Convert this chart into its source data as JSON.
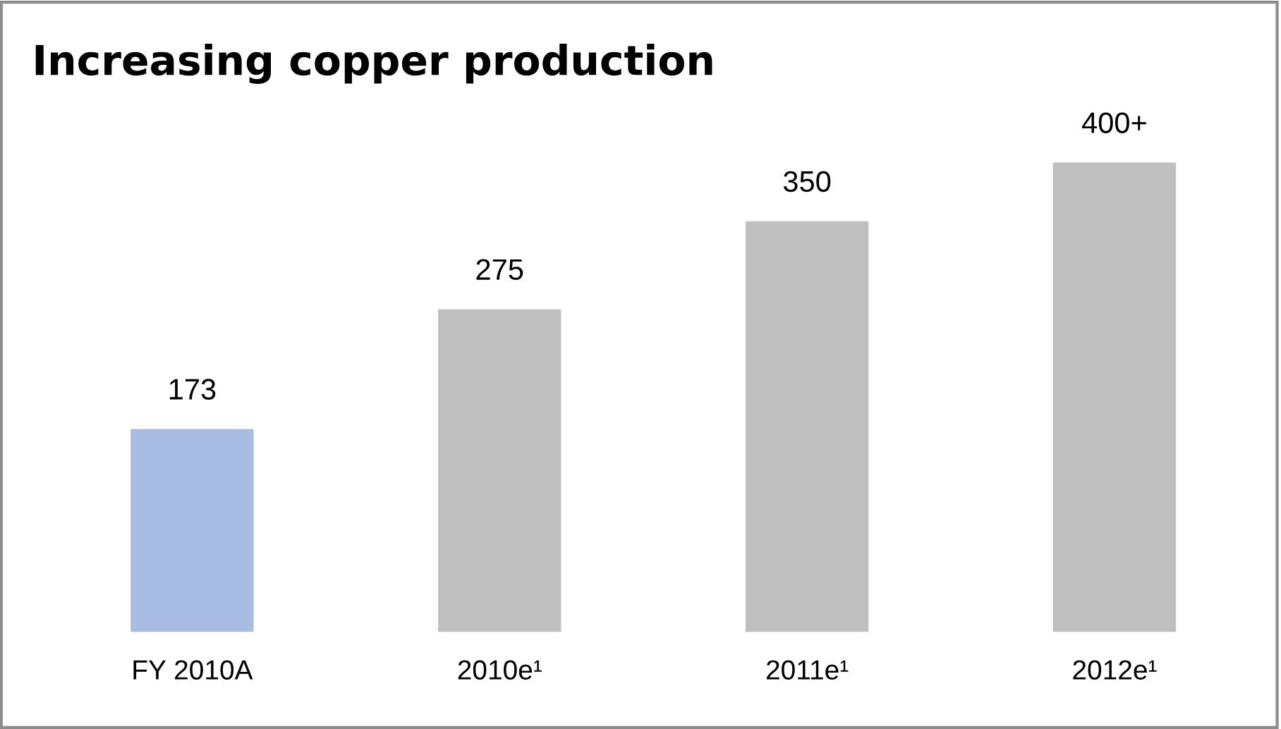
{
  "chart_data": {
    "type": "bar",
    "title": "Increasing copper production",
    "categories": [
      "FY 2010A",
      "2010e¹",
      "2011e¹",
      "2012e¹"
    ],
    "values": [
      173,
      275,
      350,
      400
    ],
    "colors": [
      "#a9bce2",
      "#bfbfbf",
      "#bfbfbf",
      "#bfbfbf"
    ],
    "value_labels": [
      "173",
      "275",
      "350",
      "400+"
    ],
    "grid": false,
    "legend": false
  }
}
